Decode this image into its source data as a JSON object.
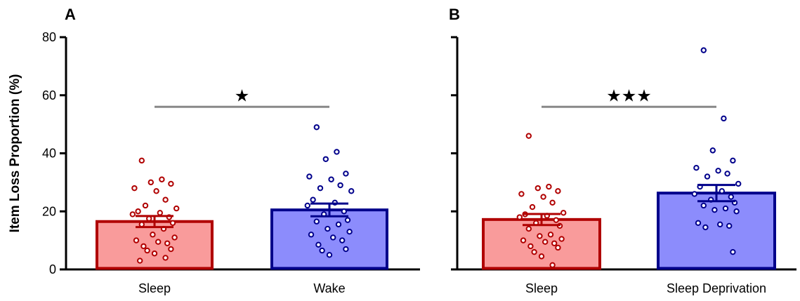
{
  "chart_data": [
    {
      "type": "bar",
      "panel_label": "A",
      "ylabel": "Item Loss Proportion (%)",
      "ylim": [
        0,
        80
      ],
      "yticks": [
        "0",
        "20",
        "40",
        "60",
        "80"
      ],
      "categories": [
        "Sleep",
        "Wake"
      ],
      "values": [
        16.5,
        20.5
      ],
      "sem": [
        1.9,
        2.2
      ],
      "colors": {
        "Sleep": "#b00000",
        "Wake": "#00008b"
      },
      "fill_colors": {
        "Sleep": "#f99b9b",
        "Wake": "#8c8cfc"
      },
      "points": {
        "Sleep": [
          37.5,
          31,
          30,
          29.5,
          28,
          27,
          24,
          22,
          21,
          20,
          19.5,
          19,
          18,
          17.5,
          16,
          15.5,
          14,
          12,
          11,
          10,
          9.5,
          9,
          8,
          7,
          6.5,
          5.5,
          4,
          3
        ],
        "Wake": [
          49,
          40.5,
          38,
          33,
          32,
          31,
          29,
          28,
          27,
          24,
          23,
          22,
          20,
          19,
          17,
          16.5,
          15.5,
          14,
          13,
          12,
          11,
          10,
          8.5,
          7,
          6.5,
          5
        ]
      },
      "significance": "★"
    },
    {
      "type": "bar",
      "panel_label": "B",
      "ylim": [
        0,
        80
      ],
      "categories": [
        "Sleep",
        "Sleep Deprivation"
      ],
      "values": [
        17.2,
        26.3
      ],
      "sem": [
        1.9,
        2.8
      ],
      "colors": {
        "Sleep": "#b00000",
        "Sleep Deprivation": "#00008b"
      },
      "fill_colors": {
        "Sleep": "#f99b9b",
        "Sleep Deprivation": "#8c8cfc"
      },
      "points": {
        "Sleep": [
          46,
          28.5,
          28,
          27,
          26,
          25,
          23,
          21.5,
          19.5,
          19,
          18.5,
          18,
          17,
          16,
          15,
          14,
          12,
          11.5,
          10.5,
          10,
          9.5,
          9,
          8,
          7.5,
          6,
          4.5,
          1.5
        ],
        "Sleep Deprivation": [
          75.5,
          52,
          41,
          37.5,
          35,
          34,
          33,
          32,
          29.5,
          28.5,
          27,
          26,
          25,
          24,
          23,
          22,
          21,
          20.5,
          20,
          16,
          15.5,
          15,
          14.5,
          6
        ]
      },
      "significance": "★★★"
    }
  ]
}
